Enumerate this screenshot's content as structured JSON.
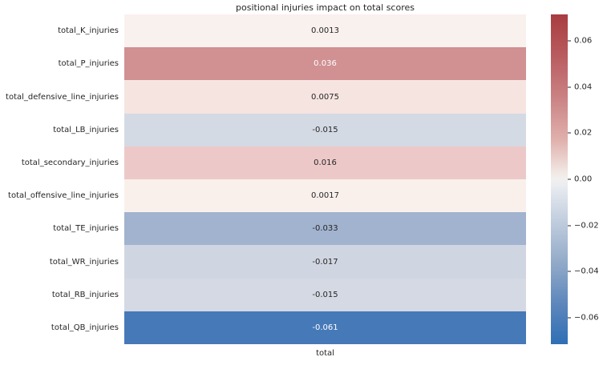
{
  "chart_data": {
    "type": "heatmap",
    "title": "positional injuries impact on total scores",
    "xlabel": "total",
    "ylabel": "",
    "columns": [
      "total"
    ],
    "categories": [
      "total_K_injuries",
      "total_P_injuries",
      "total_defensive_line_injuries",
      "total_LB_injuries",
      "total_secondary_injuries",
      "total_offensive_line_injuries",
      "total_TE_injuries",
      "total_WR_injuries",
      "total_RB_injuries",
      "total_QB_injuries"
    ],
    "rows": [
      {
        "label": "total_K_injuries",
        "value": 0.0013,
        "display": "0.0013",
        "cell_color": "#f9f1ee",
        "text_color": "#262626"
      },
      {
        "label": "total_P_injuries",
        "value": 0.036,
        "display": "0.036",
        "cell_color": "#d19092",
        "text_color": "#ffffff"
      },
      {
        "label": "total_defensive_line_injuries",
        "value": 0.0075,
        "display": "0.0075",
        "cell_color": "#f6e4e1",
        "text_color": "#262626"
      },
      {
        "label": "total_LB_injuries",
        "value": -0.015,
        "display": "-0.015",
        "cell_color": "#d4dae4",
        "text_color": "#262626"
      },
      {
        "label": "total_secondary_injuries",
        "value": 0.016,
        "display": "0.016",
        "cell_color": "#ecc9c8",
        "text_color": "#262626"
      },
      {
        "label": "total_offensive_line_injuries",
        "value": 0.0017,
        "display": "0.0017",
        "cell_color": "#f9f0ec",
        "text_color": "#262626"
      },
      {
        "label": "total_TE_injuries",
        "value": -0.033,
        "display": "-0.033",
        "cell_color": "#a2b3cf",
        "text_color": "#262626"
      },
      {
        "label": "total_WR_injuries",
        "value": -0.017,
        "display": "-0.017",
        "cell_color": "#d0d6e1",
        "text_color": "#262626"
      },
      {
        "label": "total_RB_injuries",
        "value": -0.015,
        "display": "-0.015",
        "cell_color": "#d4d9e3",
        "text_color": "#262626"
      },
      {
        "label": "total_QB_injuries",
        "value": -0.061,
        "display": "-0.061",
        "cell_color": "#4679b8",
        "text_color": "#ffffff"
      }
    ],
    "colorbar": {
      "vmin": -0.0714,
      "vmax": 0.0714,
      "ticks": [
        {
          "label": "0.06",
          "value": 0.06
        },
        {
          "label": "0.04",
          "value": 0.04
        },
        {
          "label": "0.02",
          "value": 0.02
        },
        {
          "label": "0.00",
          "value": 0.0
        },
        {
          "label": "−0.02",
          "value": -0.02
        },
        {
          "label": "−0.04",
          "value": -0.04
        },
        {
          "label": "−0.06",
          "value": -0.06
        }
      ],
      "gradient": [
        {
          "pct": 0,
          "color": "#a83c41"
        },
        {
          "pct": 12,
          "color": "#b85a5e"
        },
        {
          "pct": 25,
          "color": "#ca8183"
        },
        {
          "pct": 38,
          "color": "#e0b0ac"
        },
        {
          "pct": 48,
          "color": "#f1e8e4"
        },
        {
          "pct": 50,
          "color": "#f2f0ef"
        },
        {
          "pct": 52,
          "color": "#e9ecf0"
        },
        {
          "pct": 62,
          "color": "#c3cfdf"
        },
        {
          "pct": 75,
          "color": "#93abc9"
        },
        {
          "pct": 88,
          "color": "#5c86bc"
        },
        {
          "pct": 100,
          "color": "#2f6fb5"
        }
      ]
    },
    "legend_position": "right-colorbar",
    "grid": false,
    "accent_colors": {
      "max_red": "#a83c41",
      "center_white": "#f2f0ef",
      "max_blue": "#2f6fb5"
    }
  }
}
